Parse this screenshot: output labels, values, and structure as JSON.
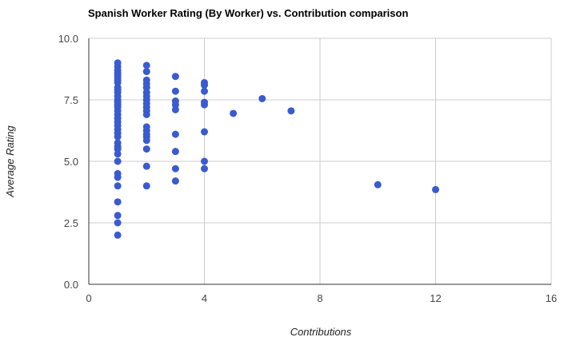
{
  "chart_data": {
    "type": "scatter",
    "title": "Spanish Worker Rating (By Worker) vs. Contribution comparison",
    "xlabel": "Contributions",
    "ylabel": "Average Rating",
    "xlim": [
      0,
      16
    ],
    "ylim": [
      0,
      10
    ],
    "xticks": [
      0,
      4,
      8,
      12,
      16
    ],
    "yticks": [
      0.0,
      2.5,
      5.0,
      7.5,
      10.0
    ],
    "xtick_labels": [
      "0",
      "4",
      "8",
      "12",
      "16"
    ],
    "ytick_labels": [
      "0.0",
      "2.5",
      "5.0",
      "7.5",
      "10.0"
    ],
    "grid": true,
    "legend": "none",
    "colors": {
      "point": "#3a5bcf",
      "grid": "#cccccc",
      "axis": "#333333"
    },
    "series": [
      {
        "points": [
          [
            1,
            9.0
          ],
          [
            1,
            8.85
          ],
          [
            1,
            8.7
          ],
          [
            1,
            8.6
          ],
          [
            1,
            8.5
          ],
          [
            1,
            8.4
          ],
          [
            1,
            8.3
          ],
          [
            1,
            8.2
          ],
          [
            1,
            8.0
          ],
          [
            1,
            7.9
          ],
          [
            1,
            7.8
          ],
          [
            1,
            7.65
          ],
          [
            1,
            7.5
          ],
          [
            1,
            7.4
          ],
          [
            1,
            7.3
          ],
          [
            1,
            7.2
          ],
          [
            1,
            7.05
          ],
          [
            1,
            6.9
          ],
          [
            1,
            6.75
          ],
          [
            1,
            6.6
          ],
          [
            1,
            6.45
          ],
          [
            1,
            6.3
          ],
          [
            1,
            6.15
          ],
          [
            1,
            6.0
          ],
          [
            1,
            5.75
          ],
          [
            1,
            5.6
          ],
          [
            1,
            5.5
          ],
          [
            1,
            5.3
          ],
          [
            1,
            5.0
          ],
          [
            1,
            4.5
          ],
          [
            1,
            4.35
          ],
          [
            1,
            4.0
          ],
          [
            1,
            3.35
          ],
          [
            1,
            2.8
          ],
          [
            1,
            2.5
          ],
          [
            1,
            2.0
          ],
          [
            2,
            8.9
          ],
          [
            2,
            8.65
          ],
          [
            2,
            8.3
          ],
          [
            2,
            8.15
          ],
          [
            2,
            8.0
          ],
          [
            2,
            7.8
          ],
          [
            2,
            7.65
          ],
          [
            2,
            7.5
          ],
          [
            2,
            7.35
          ],
          [
            2,
            7.2
          ],
          [
            2,
            7.05
          ],
          [
            2,
            6.9
          ],
          [
            2,
            6.4
          ],
          [
            2,
            6.25
          ],
          [
            2,
            6.1
          ],
          [
            2,
            6.0
          ],
          [
            2,
            5.85
          ],
          [
            2,
            5.5
          ],
          [
            2,
            4.8
          ],
          [
            2,
            4.0
          ],
          [
            3,
            8.45
          ],
          [
            3,
            7.85
          ],
          [
            3,
            7.45
          ],
          [
            3,
            7.3
          ],
          [
            3,
            7.1
          ],
          [
            3,
            6.1
          ],
          [
            3,
            5.4
          ],
          [
            3,
            4.7
          ],
          [
            3,
            4.2
          ],
          [
            4,
            8.2
          ],
          [
            4,
            8.1
          ],
          [
            4,
            7.85
          ],
          [
            4,
            7.4
          ],
          [
            4,
            7.3
          ],
          [
            4,
            6.2
          ],
          [
            4,
            5.0
          ],
          [
            4,
            4.7
          ],
          [
            5,
            6.95
          ],
          [
            6,
            7.55
          ],
          [
            7,
            7.05
          ],
          [
            10,
            4.05
          ],
          [
            12,
            3.85
          ]
        ]
      }
    ]
  }
}
